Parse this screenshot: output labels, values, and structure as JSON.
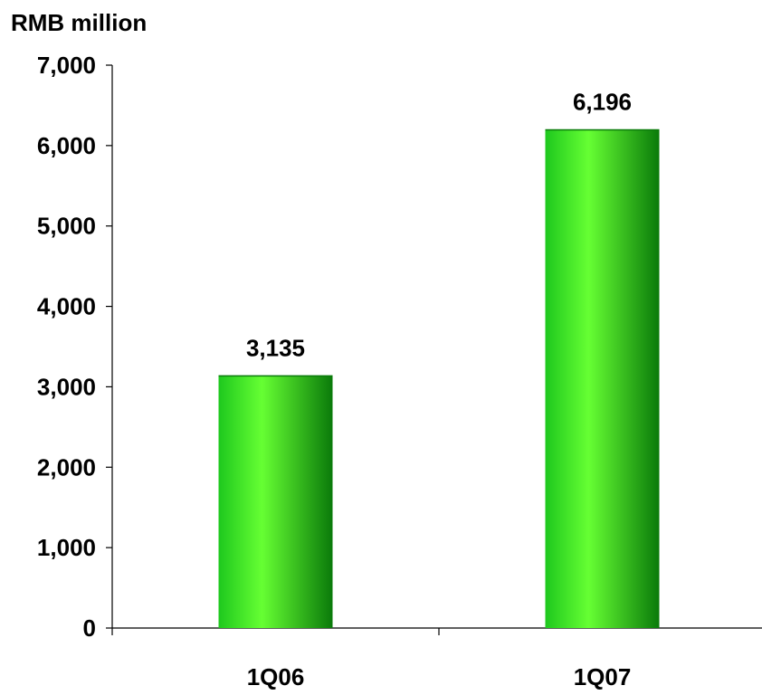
{
  "chart_data": {
    "type": "bar",
    "unit_label": "RMB million",
    "categories": [
      "1Q06",
      "1Q07"
    ],
    "values": [
      3135,
      6196
    ],
    "data_labels": [
      "3,135",
      "6,196"
    ],
    "ylim": [
      0,
      7000
    ],
    "y_ticks": [
      0,
      1000,
      2000,
      3000,
      4000,
      5000,
      6000,
      7000
    ],
    "y_tick_labels": [
      "0",
      "1,000",
      "2,000",
      "3,000",
      "4,000",
      "5,000",
      "6,000",
      "7,000"
    ],
    "grid": false,
    "legend": "none",
    "bar_color": "#1ec81e",
    "bar_color_light": "#66ff33",
    "bar_color_dark": "#0a7a0a"
  }
}
